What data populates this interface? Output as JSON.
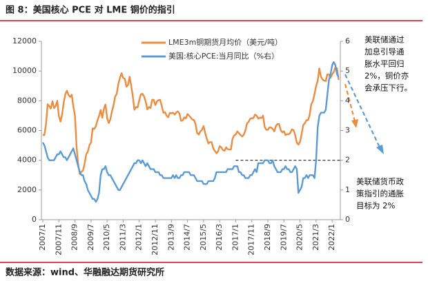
{
  "title": "图 8：美国核心 PCE 对 LME 铜价的指引",
  "source": "数据来源：wind、华融融达期货研究所",
  "chart_data": {
    "type": "line",
    "categories": [
      "2007/1",
      null,
      null,
      null,
      null,
      null,
      null,
      null,
      null,
      null,
      "2007/11",
      null,
      null,
      null,
      null,
      null,
      null,
      null,
      null,
      null,
      "2008/9",
      null,
      null,
      null,
      null,
      null,
      null,
      null,
      null,
      null,
      "2009/7",
      null,
      null,
      null,
      null,
      null,
      null,
      null,
      null,
      null,
      "2010/5",
      null,
      null,
      null,
      null,
      null,
      null,
      null,
      null,
      null,
      "2011/3",
      null,
      null,
      null,
      null,
      null,
      null,
      null,
      null,
      null,
      "2012/1",
      null,
      null,
      null,
      null,
      null,
      null,
      null,
      null,
      null,
      "2012/11",
      null,
      null,
      null,
      null,
      null,
      null,
      null,
      null,
      null,
      "2013/9",
      null,
      null,
      null,
      null,
      null,
      null,
      null,
      null,
      null,
      "2014/7",
      null,
      null,
      null,
      null,
      null,
      null,
      null,
      null,
      null,
      "2015/5",
      null,
      null,
      null,
      null,
      null,
      null,
      null,
      null,
      null,
      "2016/3",
      null,
      null,
      null,
      null,
      null,
      null,
      null,
      null,
      null,
      "2017/1",
      null,
      null,
      null,
      null,
      null,
      null,
      null,
      null,
      null,
      "2017/11",
      null,
      null,
      null,
      null,
      null,
      null,
      null,
      null,
      null,
      "2018/9",
      null,
      null,
      null,
      null,
      null,
      null,
      null,
      null,
      null,
      "2019/7",
      null,
      null,
      null,
      null,
      null,
      null,
      null,
      null,
      null,
      "2020/5",
      null,
      null,
      null,
      null,
      null,
      null,
      null,
      null,
      null,
      "2021/3",
      null,
      null,
      null,
      null,
      null,
      null,
      null,
      null,
      null,
      "2022/1",
      null,
      null,
      null,
      null
    ],
    "series": [
      {
        "name": "LME3m铜期货月均价（美元/吨）",
        "color": "#ED8B3E",
        "values": [
          5700,
          5700,
          6450,
          7770,
          7650,
          7480,
          7970,
          7510,
          7650,
          8000,
          6970,
          6600,
          7060,
          7890,
          8440,
          8680,
          8380,
          8260,
          8410,
          7630,
          6990,
          4920,
          3730,
          3070,
          3220,
          3310,
          3750,
          4400,
          4580,
          5010,
          5200,
          6150,
          6100,
          6300,
          6690,
          6980,
          7380,
          6860,
          7460,
          7750,
          6840,
          6500,
          6750,
          7280,
          7710,
          8290,
          8470,
          9150,
          9550,
          9860,
          9530,
          9490,
          8950,
          9060,
          9620,
          8990,
          8300,
          7400,
          7580,
          7560,
          8040,
          8440,
          8470,
          8290,
          7960,
          7420,
          7580,
          7510,
          8070,
          8060,
          7710,
          7960,
          8050,
          8060,
          7650,
          7200,
          7230,
          7000,
          6900,
          7190,
          7160,
          7200,
          7070,
          7220,
          7290,
          7150,
          6650,
          6670,
          6890,
          6820,
          7110,
          7000,
          6870,
          6740,
          6710,
          6440,
          5830,
          5730,
          5940,
          6040,
          6300,
          5830,
          5460,
          5130,
          5220,
          5220,
          4800,
          4630,
          4470,
          4600,
          4950,
          4870,
          4690,
          4640,
          4870,
          4750,
          4720,
          4730,
          5450,
          5660,
          5740,
          5940,
          5820,
          5700,
          5600,
          5720,
          5990,
          6480,
          6580,
          6800,
          6830,
          6840,
          7070,
          7000,
          6800,
          6870,
          6840,
          7000,
          6250,
          6050,
          6050,
          6220,
          6200,
          6110,
          5940,
          6300,
          6440,
          6430,
          6020,
          5880,
          5950,
          5700,
          5760,
          5740,
          5860,
          6080,
          6030,
          5690,
          5180,
          5060,
          5240,
          5750,
          6370,
          6500,
          6700,
          6700,
          7060,
          7770,
          7970,
          8460,
          8990,
          9340,
          10180,
          9620,
          9440,
          9360,
          9330,
          9780,
          9770,
          9550,
          9780,
          9940,
          10240,
          10180,
          9400
        ]
      },
      {
        "name": "美国:核心PCE:当月同比（%右）",
        "color": "#5B9BD5",
        "axis": "y2",
        "values": [
          2.6,
          2.5,
          2.3,
          2.1,
          2.0,
          2.0,
          2.0,
          2.0,
          2.1,
          2.2,
          2.2,
          2.3,
          2.2,
          2.1,
          2.1,
          2.0,
          2.1,
          2.2,
          2.3,
          2.4,
          2.2,
          2.0,
          1.8,
          1.6,
          1.5,
          1.5,
          1.3,
          1.2,
          1.0,
          0.9,
          0.8,
          0.7,
          0.7,
          0.6,
          0.7,
          0.9,
          1.5,
          1.7,
          1.7,
          1.8,
          1.6,
          1.5,
          1.5,
          1.4,
          1.3,
          1.2,
          1.1,
          1.0,
          1.0,
          1.1,
          1.2,
          1.3,
          1.4,
          1.5,
          1.6,
          1.7,
          1.8,
          1.9,
          1.9,
          2.0,
          2.0,
          1.9,
          2.0,
          1.9,
          1.8,
          1.9,
          1.8,
          1.7,
          1.7,
          1.7,
          1.6,
          1.6,
          1.6,
          1.5,
          1.5,
          1.4,
          1.4,
          1.4,
          1.4,
          1.4,
          1.4,
          1.5,
          1.4,
          1.5,
          1.4,
          1.4,
          1.5,
          1.5,
          1.6,
          1.6,
          1.6,
          1.6,
          1.5,
          1.5,
          1.5,
          1.4,
          1.3,
          1.3,
          1.3,
          1.3,
          1.2,
          1.2,
          1.2,
          1.3,
          1.3,
          1.3,
          1.3,
          1.4,
          1.6,
          1.6,
          1.6,
          1.6,
          1.6,
          1.6,
          1.6,
          1.7,
          1.7,
          1.7,
          1.7,
          1.8,
          1.8,
          1.8,
          1.6,
          1.6,
          1.5,
          1.5,
          1.4,
          1.4,
          1.4,
          1.5,
          1.5,
          1.6,
          1.7,
          1.6,
          1.9,
          1.9,
          1.9,
          1.9,
          2.0,
          2.0,
          2.0,
          1.9,
          1.9,
          2.0,
          1.8,
          1.7,
          1.6,
          1.6,
          1.6,
          1.7,
          1.7,
          1.8,
          1.7,
          1.7,
          1.6,
          1.6,
          1.7,
          1.8,
          1.7,
          0.9,
          1.0,
          1.1,
          1.4,
          1.4,
          1.5,
          1.4,
          1.5,
          1.5,
          1.5,
          1.4,
          2.0,
          3.1,
          3.5,
          3.6,
          3.6,
          3.6,
          3.7,
          4.2,
          4.7,
          4.9,
          5.2,
          5.3,
          5.2,
          4.9,
          4.8
        ]
      }
    ],
    "ylim": [
      0,
      12000
    ],
    "yticks": [
      0,
      2000,
      4000,
      6000,
      8000,
      10000,
      12000
    ],
    "y2lim": [
      0,
      6
    ],
    "y2ticks": [
      0,
      1,
      2,
      3,
      4,
      5,
      6
    ],
    "reference_line": {
      "value": 2,
      "axis": "y2"
    },
    "annotations": [
      {
        "lines": [
          "美联储通过",
          "加息引导通",
          "胀水平回归",
          "2%，铜价亦",
          "会承压下行。"
        ]
      },
      {
        "lines": [
          "美联储货币政",
          "策指引的通胀",
          "目标为 2%"
        ]
      }
    ]
  }
}
